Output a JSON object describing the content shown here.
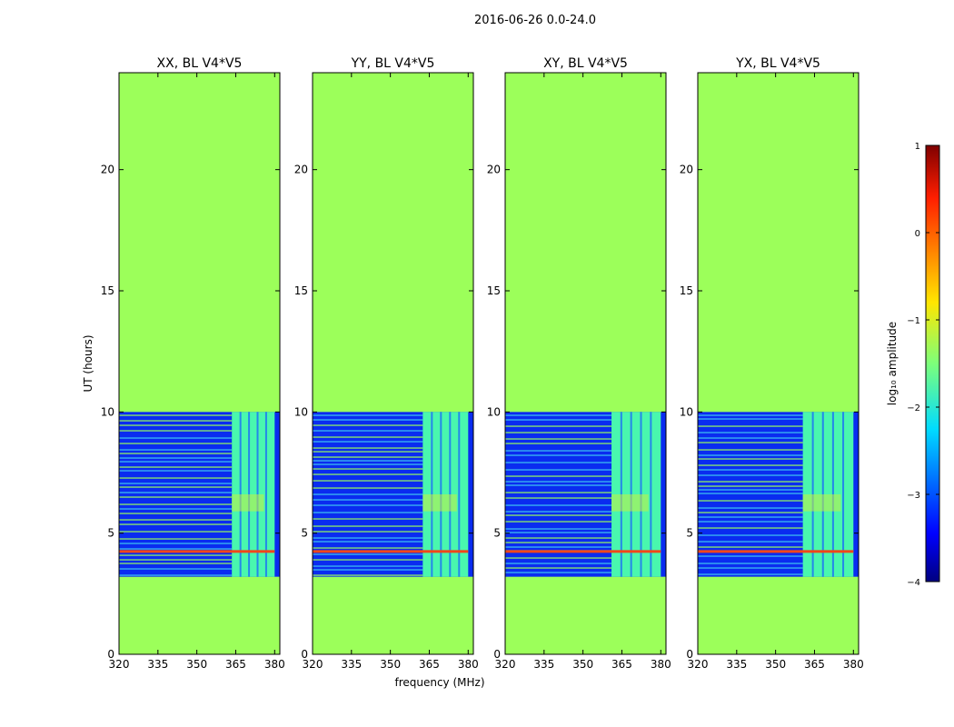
{
  "chart_data": {
    "type": "heatmap",
    "suptitle": "2016-06-26 0.0-24.0",
    "xlabel": "frequency (MHz)",
    "ylabel": "UT (hours)",
    "xlim": [
      320,
      382
    ],
    "ylim": [
      0,
      24
    ],
    "xticks": [
      "320",
      "335",
      "350",
      "365",
      "380"
    ],
    "yticks": [
      "0",
      "5",
      "10",
      "15",
      "20"
    ],
    "panels": [
      {
        "title": "XX, BL V4*V5",
        "band_start_mhz": 363.5
      },
      {
        "title": "YY, BL V4*V5",
        "band_start_mhz": 362.5
      },
      {
        "title": "XY, BL V4*V5",
        "band_start_mhz": 361.0
      },
      {
        "title": "YX, BL V4*V5",
        "band_start_mhz": 360.5
      }
    ],
    "data_rows_ut": [
      3.2,
      10.0
    ],
    "flagged_value": -1.3,
    "colorbar": {
      "label": "log₁₀ amplitude",
      "range": [
        -4,
        1
      ],
      "ticks": [
        "1",
        "0",
        "−1",
        "−2",
        "−3",
        "−4"
      ],
      "colormap": "jet"
    },
    "colors": {
      "flagged": "#9cff5a",
      "noise": "#0a2cf0",
      "band": "#49f7ae",
      "rfi": "#f0471a"
    }
  }
}
